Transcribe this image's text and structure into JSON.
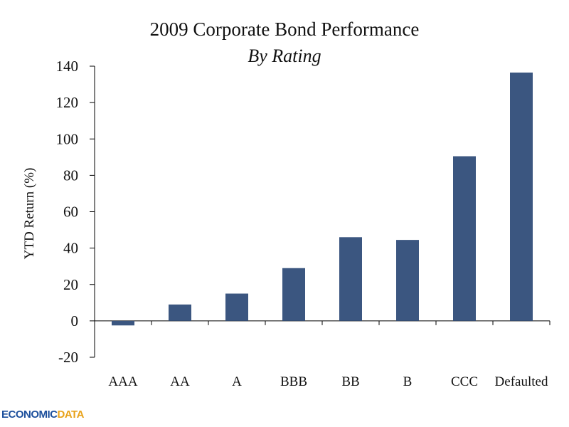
{
  "chart_data": {
    "type": "bar",
    "title": "2009 Corporate Bond Performance",
    "subtitle": "By Rating",
    "ylabel": "YTD Return (%)",
    "xlabel": "",
    "categories": [
      "AAA",
      "AA",
      "A",
      "BBB",
      "BB",
      "B",
      "CCC",
      "Defaulted"
    ],
    "values": [
      -2.5,
      9,
      15,
      29,
      46,
      44.5,
      90.5,
      136.5
    ],
    "ylim": [
      -20,
      140
    ],
    "yticks": [
      -20,
      0,
      20,
      40,
      60,
      80,
      100,
      120,
      140
    ],
    "bar_color": "#3b5680",
    "grid": false,
    "legend": "none"
  },
  "branding": {
    "logo_text_a": "ECONOMIC",
    "logo_text_b": "DATA"
  }
}
